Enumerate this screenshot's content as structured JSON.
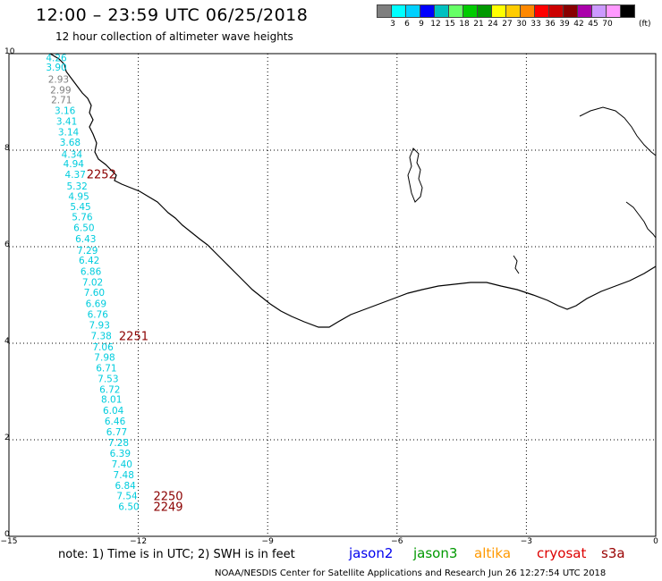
{
  "title": "12:00 – 23:59 UTC 06/25/2018",
  "subtitle": "12 hour collection of altimeter wave heights",
  "colorbar": {
    "labels": [
      "3",
      "6",
      "9",
      "12",
      "15",
      "18",
      "21",
      "24",
      "27",
      "30",
      "33",
      "36",
      "39",
      "42",
      "45",
      "70"
    ],
    "unit": "(ft)",
    "colors": [
      "#7f7f7f",
      "#00ffff",
      "#00d0ff",
      "#0000ff",
      "#00c0c0",
      "#66ff66",
      "#00cc00",
      "#009900",
      "#ffff00",
      "#ffcc00",
      "#ff8800",
      "#ff0000",
      "#cc0000",
      "#880000",
      "#aa00aa",
      "#cc99ff",
      "#ff99ff",
      "#000000"
    ]
  },
  "axes": {
    "x_ticks": [
      "−15",
      "−12",
      "−9",
      "−6",
      "−3",
      "0"
    ],
    "y_ticks": [
      "10",
      "8",
      "6",
      "4",
      "2",
      "0"
    ],
    "x_range": [
      -15,
      0
    ],
    "y_range": [
      0,
      10
    ]
  },
  "chart_data": {
    "type": "scatter",
    "points": [
      {
        "x": -13.9,
        "y": 9.92,
        "value": "4.26",
        "color": "#00ccdd"
      },
      {
        "x": -13.9,
        "y": 9.72,
        "value": "3.90",
        "color": "#00ccdd"
      },
      {
        "x": -13.85,
        "y": 9.47,
        "value": "2.93",
        "color": "#808080"
      },
      {
        "x": -13.8,
        "y": 9.25,
        "value": "2.99",
        "color": "#808080"
      },
      {
        "x": -13.78,
        "y": 9.05,
        "value": "2.71",
        "color": "#808080"
      },
      {
        "x": -13.7,
        "y": 8.82,
        "value": "3.16",
        "color": "#00ccdd"
      },
      {
        "x": -13.66,
        "y": 8.6,
        "value": "3.41",
        "color": "#00ccdd"
      },
      {
        "x": -13.62,
        "y": 8.38,
        "value": "3.14",
        "color": "#00ccdd"
      },
      {
        "x": -13.58,
        "y": 8.17,
        "value": "3.68",
        "color": "#00ccdd"
      },
      {
        "x": -13.54,
        "y": 7.92,
        "value": "4.34",
        "color": "#00ccdd"
      },
      {
        "x": -13.5,
        "y": 7.72,
        "value": "4.94",
        "color": "#00ccdd"
      },
      {
        "x": -13.46,
        "y": 7.5,
        "value": "4.37",
        "color": "#00ccdd"
      },
      {
        "x": -13.42,
        "y": 7.26,
        "value": "5.32",
        "color": "#00ccdd"
      },
      {
        "x": -13.38,
        "y": 7.05,
        "value": "4.95",
        "color": "#00ccdd"
      },
      {
        "x": -13.34,
        "y": 6.83,
        "value": "5.45",
        "color": "#00ccdd"
      },
      {
        "x": -13.3,
        "y": 6.62,
        "value": "5.76",
        "color": "#00ccdd"
      },
      {
        "x": -13.26,
        "y": 6.4,
        "value": "6.50",
        "color": "#00ccdd"
      },
      {
        "x": -13.22,
        "y": 6.17,
        "value": "6.43",
        "color": "#00ccdd"
      },
      {
        "x": -13.18,
        "y": 5.93,
        "value": "7.29",
        "color": "#00ccdd"
      },
      {
        "x": -13.14,
        "y": 5.72,
        "value": "6.42",
        "color": "#00ccdd"
      },
      {
        "x": -13.1,
        "y": 5.49,
        "value": "6.86",
        "color": "#00ccdd"
      },
      {
        "x": -13.06,
        "y": 5.27,
        "value": "7.02",
        "color": "#00ccdd"
      },
      {
        "x": -13.02,
        "y": 5.06,
        "value": "7.60",
        "color": "#00ccdd"
      },
      {
        "x": -12.98,
        "y": 4.82,
        "value": "6.69",
        "color": "#00ccdd"
      },
      {
        "x": -12.94,
        "y": 4.6,
        "value": "6.76",
        "color": "#00ccdd"
      },
      {
        "x": -12.9,
        "y": 4.38,
        "value": "7.93",
        "color": "#00ccdd"
      },
      {
        "x": -12.86,
        "y": 4.16,
        "value": "7.38",
        "color": "#00ccdd"
      },
      {
        "x": -12.82,
        "y": 3.93,
        "value": "7.06",
        "color": "#00ccdd"
      },
      {
        "x": -12.78,
        "y": 3.71,
        "value": "7.98",
        "color": "#00ccdd"
      },
      {
        "x": -12.74,
        "y": 3.49,
        "value": "6.71",
        "color": "#00ccdd"
      },
      {
        "x": -12.7,
        "y": 3.27,
        "value": "7.53",
        "color": "#00ccdd"
      },
      {
        "x": -12.66,
        "y": 3.05,
        "value": "6.72",
        "color": "#00ccdd"
      },
      {
        "x": -12.62,
        "y": 2.84,
        "value": "8.01",
        "color": "#00ccdd"
      },
      {
        "x": -12.58,
        "y": 2.61,
        "value": "6.04",
        "color": "#00ccdd"
      },
      {
        "x": -12.54,
        "y": 2.39,
        "value": "6.46",
        "color": "#00ccdd"
      },
      {
        "x": -12.5,
        "y": 2.17,
        "value": "6.77",
        "color": "#00ccdd"
      },
      {
        "x": -12.46,
        "y": 1.94,
        "value": "7.28",
        "color": "#00ccdd"
      },
      {
        "x": -12.42,
        "y": 1.72,
        "value": "6.39",
        "color": "#00ccdd"
      },
      {
        "x": -12.38,
        "y": 1.5,
        "value": "7.40",
        "color": "#00ccdd"
      },
      {
        "x": -12.34,
        "y": 1.28,
        "value": "7.48",
        "color": "#00ccdd"
      },
      {
        "x": -12.3,
        "y": 1.06,
        "value": "6.84",
        "color": "#00ccdd"
      },
      {
        "x": -12.26,
        "y": 0.84,
        "value": "7.54",
        "color": "#00ccdd"
      },
      {
        "x": -12.22,
        "y": 0.62,
        "value": "6.50",
        "color": "#00ccdd"
      }
    ],
    "time_labels": [
      {
        "x": -13.2,
        "y": 7.51,
        "text": "2252",
        "color": "#8b0000"
      },
      {
        "x": -12.45,
        "y": 4.16,
        "text": "2251",
        "color": "#8b0000"
      },
      {
        "x": -11.65,
        "y": 0.84,
        "text": "2250",
        "color": "#8b0000"
      },
      {
        "x": -11.65,
        "y": 0.62,
        "text": "2249",
        "color": "#8b0000"
      }
    ]
  },
  "note": "note:  1) Time is in UTC;  2) SWH is in feet",
  "satellites": [
    {
      "name": "jason2",
      "color": "#0000ee"
    },
    {
      "name": "jason3",
      "color": "#009900"
    },
    {
      "name": "altika",
      "color": "#ff9900"
    },
    {
      "name": "cryosat",
      "color": "#dd0000"
    },
    {
      "name": "s3a",
      "color": "#990000"
    }
  ],
  "footer": "NOAA/NESDIS Center for Satellite Applications and Research    Jun 26 12:27:54 UTC 2018"
}
